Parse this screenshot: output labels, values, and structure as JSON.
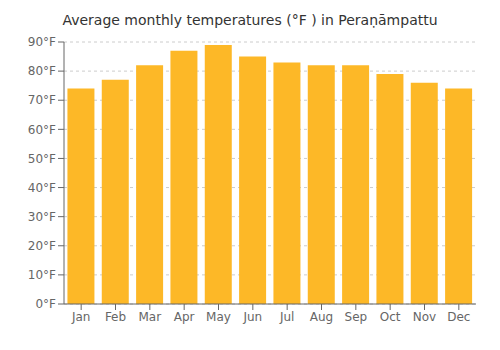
{
  "chart_data": {
    "type": "bar",
    "title": "Average monthly temperatures (°F ) in Peraṇāmpattu",
    "categories": [
      "Jan",
      "Feb",
      "Mar",
      "Apr",
      "May",
      "Jun",
      "Jul",
      "Aug",
      "Sep",
      "Oct",
      "Nov",
      "Dec"
    ],
    "values": [
      74,
      77,
      82,
      87,
      89,
      85,
      83,
      82,
      82,
      79,
      76,
      74
    ],
    "color": "#FDB827",
    "ylim": [
      0,
      90
    ],
    "yticks": [
      {
        "value": 0,
        "label": "0°F"
      },
      {
        "value": 10,
        "label": "10°F"
      },
      {
        "value": 20,
        "label": "20°F"
      },
      {
        "value": 30,
        "label": "30°F"
      },
      {
        "value": 40,
        "label": "40°F"
      },
      {
        "value": 50,
        "label": "50°F"
      },
      {
        "value": 60,
        "label": "60°F"
      },
      {
        "value": 70,
        "label": "70°F"
      },
      {
        "value": 80,
        "label": "80°F"
      },
      {
        "value": 90,
        "label": "90°F"
      }
    ],
    "grid": true
  }
}
